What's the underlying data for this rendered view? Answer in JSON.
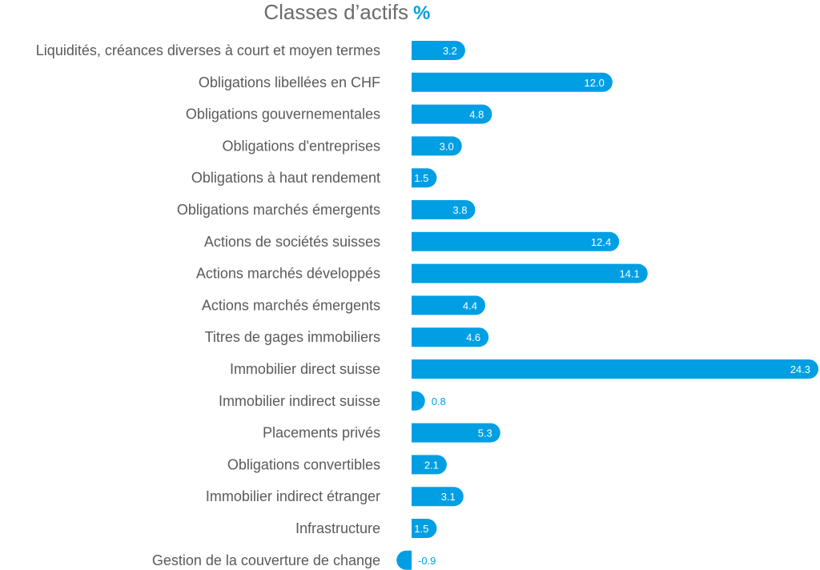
{
  "chart_data": {
    "type": "bar",
    "orientation": "horizontal",
    "title": "Classes d’actifs",
    "unit": "%",
    "categories": [
      "Liquidités, créances diverses à court et moyen termes",
      "Obligations libellées en CHF",
      "Obligations gouvernementales",
      "Obligations d'entreprises",
      "Obligations à haut rendement",
      "Obligations marchés émergents",
      "Actions de sociétés suisses",
      "Actions marchés développés",
      "Actions marchés émergents",
      "Titres de gages immobiliers",
      "Immobilier direct suisse",
      "Immobilier indirect suisse",
      "Placements privés",
      "Obligations convertibles",
      "Immobilier indirect étranger",
      "Infrastructure",
      "Gestion de la couverture de change"
    ],
    "values": [
      3.2,
      12.0,
      4.8,
      3.0,
      1.5,
      3.8,
      12.4,
      14.1,
      4.4,
      4.6,
      24.3,
      0.8,
      5.3,
      2.1,
      3.1,
      1.5,
      -0.9
    ],
    "value_labels": [
      "3.2",
      "12.0",
      "4.8",
      "3.0",
      "1.5",
      "3.8",
      "12.4",
      "14.1",
      "4.4",
      "4.6",
      "24.3",
      "0.8",
      "5.3",
      "2.1",
      "3.1",
      "1.5",
      "-0.9"
    ],
    "xlim": [
      -0.9,
      24.3
    ],
    "grid": false,
    "legend": "none",
    "colors": {
      "bar": "#009fe3",
      "label": "#5a5a5a",
      "title": "#6b6b6b",
      "inside_value": "#ffffff"
    }
  }
}
